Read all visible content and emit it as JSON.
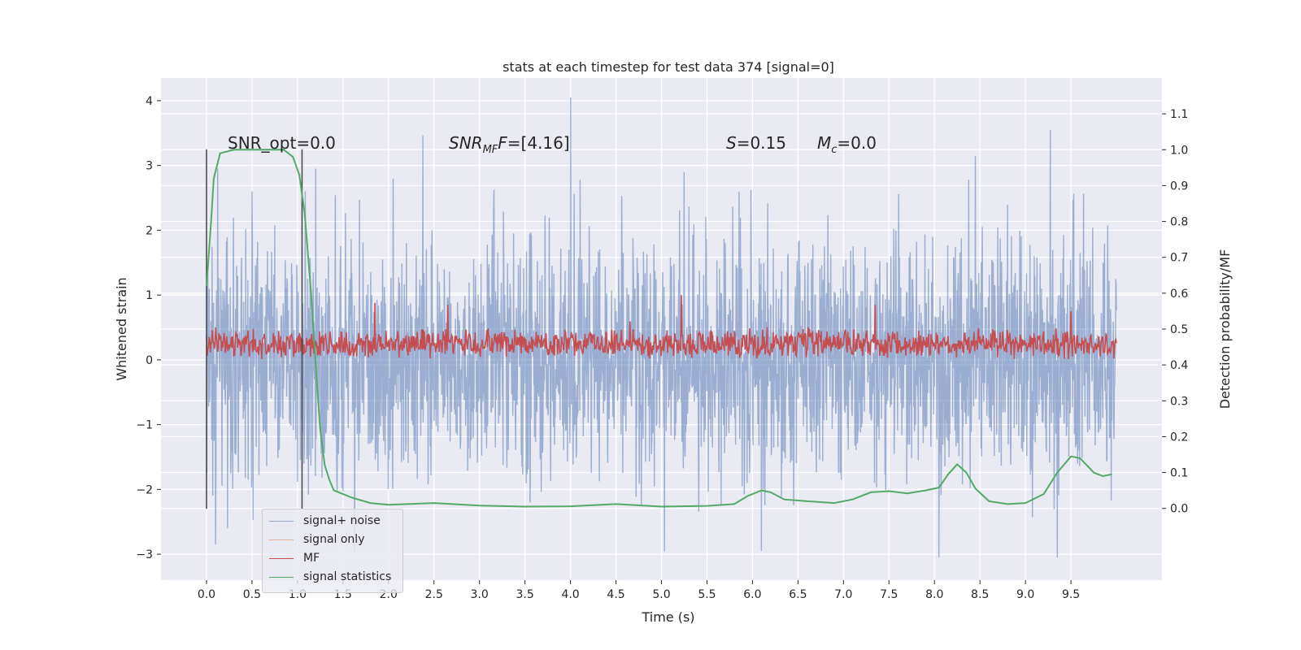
{
  "chart_data": {
    "type": "line",
    "title": "stats at each timestep for test data 374 [signal=0]",
    "xlabel": "Time (s)",
    "ylabel": "Whitened strain",
    "y2label": "Detection probability/MF",
    "xlim": [
      -0.5,
      10.5
    ],
    "ylim": [
      -3.4,
      4.35
    ],
    "y2lim": [
      -0.2,
      1.2
    ],
    "xticks": [
      0.0,
      0.5,
      1.0,
      1.5,
      2.0,
      2.5,
      3.0,
      3.5,
      4.0,
      4.5,
      5.0,
      5.5,
      6.0,
      6.5,
      7.0,
      7.5,
      8.0,
      8.5,
      9.0,
      9.5
    ],
    "xtick_labels": [
      "0.0",
      "0.5",
      "1.0",
      "1.5",
      "2.0",
      "2.5",
      "3.0",
      "3.5",
      "4.0",
      "4.5",
      "5.0",
      "5.5",
      "6.0",
      "6.5",
      "7.0",
      "7.5",
      "8.0",
      "8.5",
      "9.0",
      "9.5"
    ],
    "yticks": [
      -3,
      -2,
      -1,
      0,
      1,
      2,
      3,
      4
    ],
    "ytick_labels": [
      "−3",
      "−2",
      "−1",
      "0",
      "1",
      "2",
      "3",
      "4"
    ],
    "y2ticks": [
      0.0,
      0.1,
      0.2,
      0.3,
      0.4,
      0.5,
      0.6,
      0.7,
      0.8,
      0.9,
      1.0,
      1.1
    ],
    "y2tick_labels": [
      "0.0",
      "0.1",
      "0.2",
      "0.3",
      "0.4",
      "0.5",
      "0.6",
      "0.7",
      "0.8",
      "0.9",
      "1.0",
      "1.1"
    ],
    "grid": true,
    "legend_position": "lower-left",
    "series": [
      {
        "name": "signal+ noise",
        "color": "#4c72b0",
        "axis": "left",
        "x_range": [
          0.0,
          10.0
        ],
        "description_of_values": "dense noise centred on 0, spread about ±1.5, extremes",
        "values": [],
        "notable_peaks": [
          [
            0.5,
            2.6
          ],
          [
            1.2,
            2.95
          ],
          [
            2.05,
            2.8
          ],
          [
            4.0,
            4.05
          ],
          [
            5.25,
            2.9
          ],
          [
            8.45,
            3.15
          ],
          [
            6.1,
            -2.95
          ],
          [
            8.05,
            -3.05
          ],
          [
            9.35,
            -3.05
          ],
          [
            0.1,
            -2.85
          ]
        ]
      },
      {
        "name": "signal only",
        "color": "#dd8452",
        "axis": "left",
        "values": []
      },
      {
        "name": "MF",
        "color": "#c44e52",
        "axis": "left",
        "x_range": [
          0.0,
          10.0
        ],
        "baseline": 0.25,
        "spread": 0.2,
        "notable_peaks": [
          [
            1.85,
            0.88
          ],
          [
            5.22,
            1.0
          ],
          [
            9.5,
            0.75
          ],
          [
            2.65,
            0.85
          ],
          [
            7.35,
            0.85
          ]
        ]
      },
      {
        "name": "signal statistics",
        "color": "#55a868",
        "axis": "right",
        "points": [
          [
            0.0,
            0.62
          ],
          [
            0.05,
            0.8
          ],
          [
            0.08,
            0.92
          ],
          [
            0.15,
            0.99
          ],
          [
            0.3,
            1.0
          ],
          [
            0.6,
            1.0
          ],
          [
            0.85,
            1.0
          ],
          [
            0.95,
            0.98
          ],
          [
            1.02,
            0.93
          ],
          [
            1.08,
            0.82
          ],
          [
            1.15,
            0.6
          ],
          [
            1.2,
            0.4
          ],
          [
            1.25,
            0.22
          ],
          [
            1.3,
            0.12
          ],
          [
            1.35,
            0.08
          ],
          [
            1.4,
            0.05
          ],
          [
            1.5,
            0.04
          ],
          [
            1.6,
            0.03
          ],
          [
            1.8,
            0.015
          ],
          [
            2.0,
            0.01
          ],
          [
            2.5,
            0.015
          ],
          [
            3.0,
            0.008
          ],
          [
            3.5,
            0.005
          ],
          [
            4.0,
            0.006
          ],
          [
            4.5,
            0.012
          ],
          [
            5.0,
            0.005
          ],
          [
            5.5,
            0.007
          ],
          [
            5.8,
            0.012
          ],
          [
            5.95,
            0.035
          ],
          [
            6.1,
            0.05
          ],
          [
            6.2,
            0.045
          ],
          [
            6.35,
            0.025
          ],
          [
            6.6,
            0.02
          ],
          [
            6.9,
            0.015
          ],
          [
            7.1,
            0.025
          ],
          [
            7.3,
            0.045
          ],
          [
            7.5,
            0.048
          ],
          [
            7.7,
            0.042
          ],
          [
            7.9,
            0.05
          ],
          [
            8.05,
            0.058
          ],
          [
            8.15,
            0.095
          ],
          [
            8.25,
            0.123
          ],
          [
            8.35,
            0.1
          ],
          [
            8.45,
            0.055
          ],
          [
            8.6,
            0.02
          ],
          [
            8.8,
            0.012
          ],
          [
            9.0,
            0.015
          ],
          [
            9.2,
            0.04
          ],
          [
            9.35,
            0.1
          ],
          [
            9.5,
            0.145
          ],
          [
            9.6,
            0.14
          ],
          [
            9.75,
            0.1
          ],
          [
            9.85,
            0.09
          ],
          [
            9.95,
            0.095
          ]
        ]
      }
    ],
    "vertical_lines": [
      {
        "x": 0.0,
        "y_range": [
          -2.3,
          3.25
        ],
        "color": "#444444"
      },
      {
        "x": 1.05,
        "y_range": [
          -2.3,
          3.25
        ],
        "color": "#444444"
      }
    ],
    "annotations": {
      "snr_opt": "SNR_opt=0.0",
      "snr_mf_prefix": "SNR",
      "snr_mf_sub": "MF",
      "snr_mf_value": "=[4.16]",
      "s_label": "S",
      "s_value": "=0.15",
      "mc_label": "M",
      "mc_sub": "c",
      "mc_value": "=0.0"
    }
  },
  "legend": {
    "items": [
      {
        "label": "signal+ noise",
        "color": "#4c72b0"
      },
      {
        "label": "signal only",
        "color": "#dd8452"
      },
      {
        "label": "MF",
        "color": "#c44e52"
      },
      {
        "label": "signal statistics",
        "color": "#55a868"
      }
    ]
  }
}
